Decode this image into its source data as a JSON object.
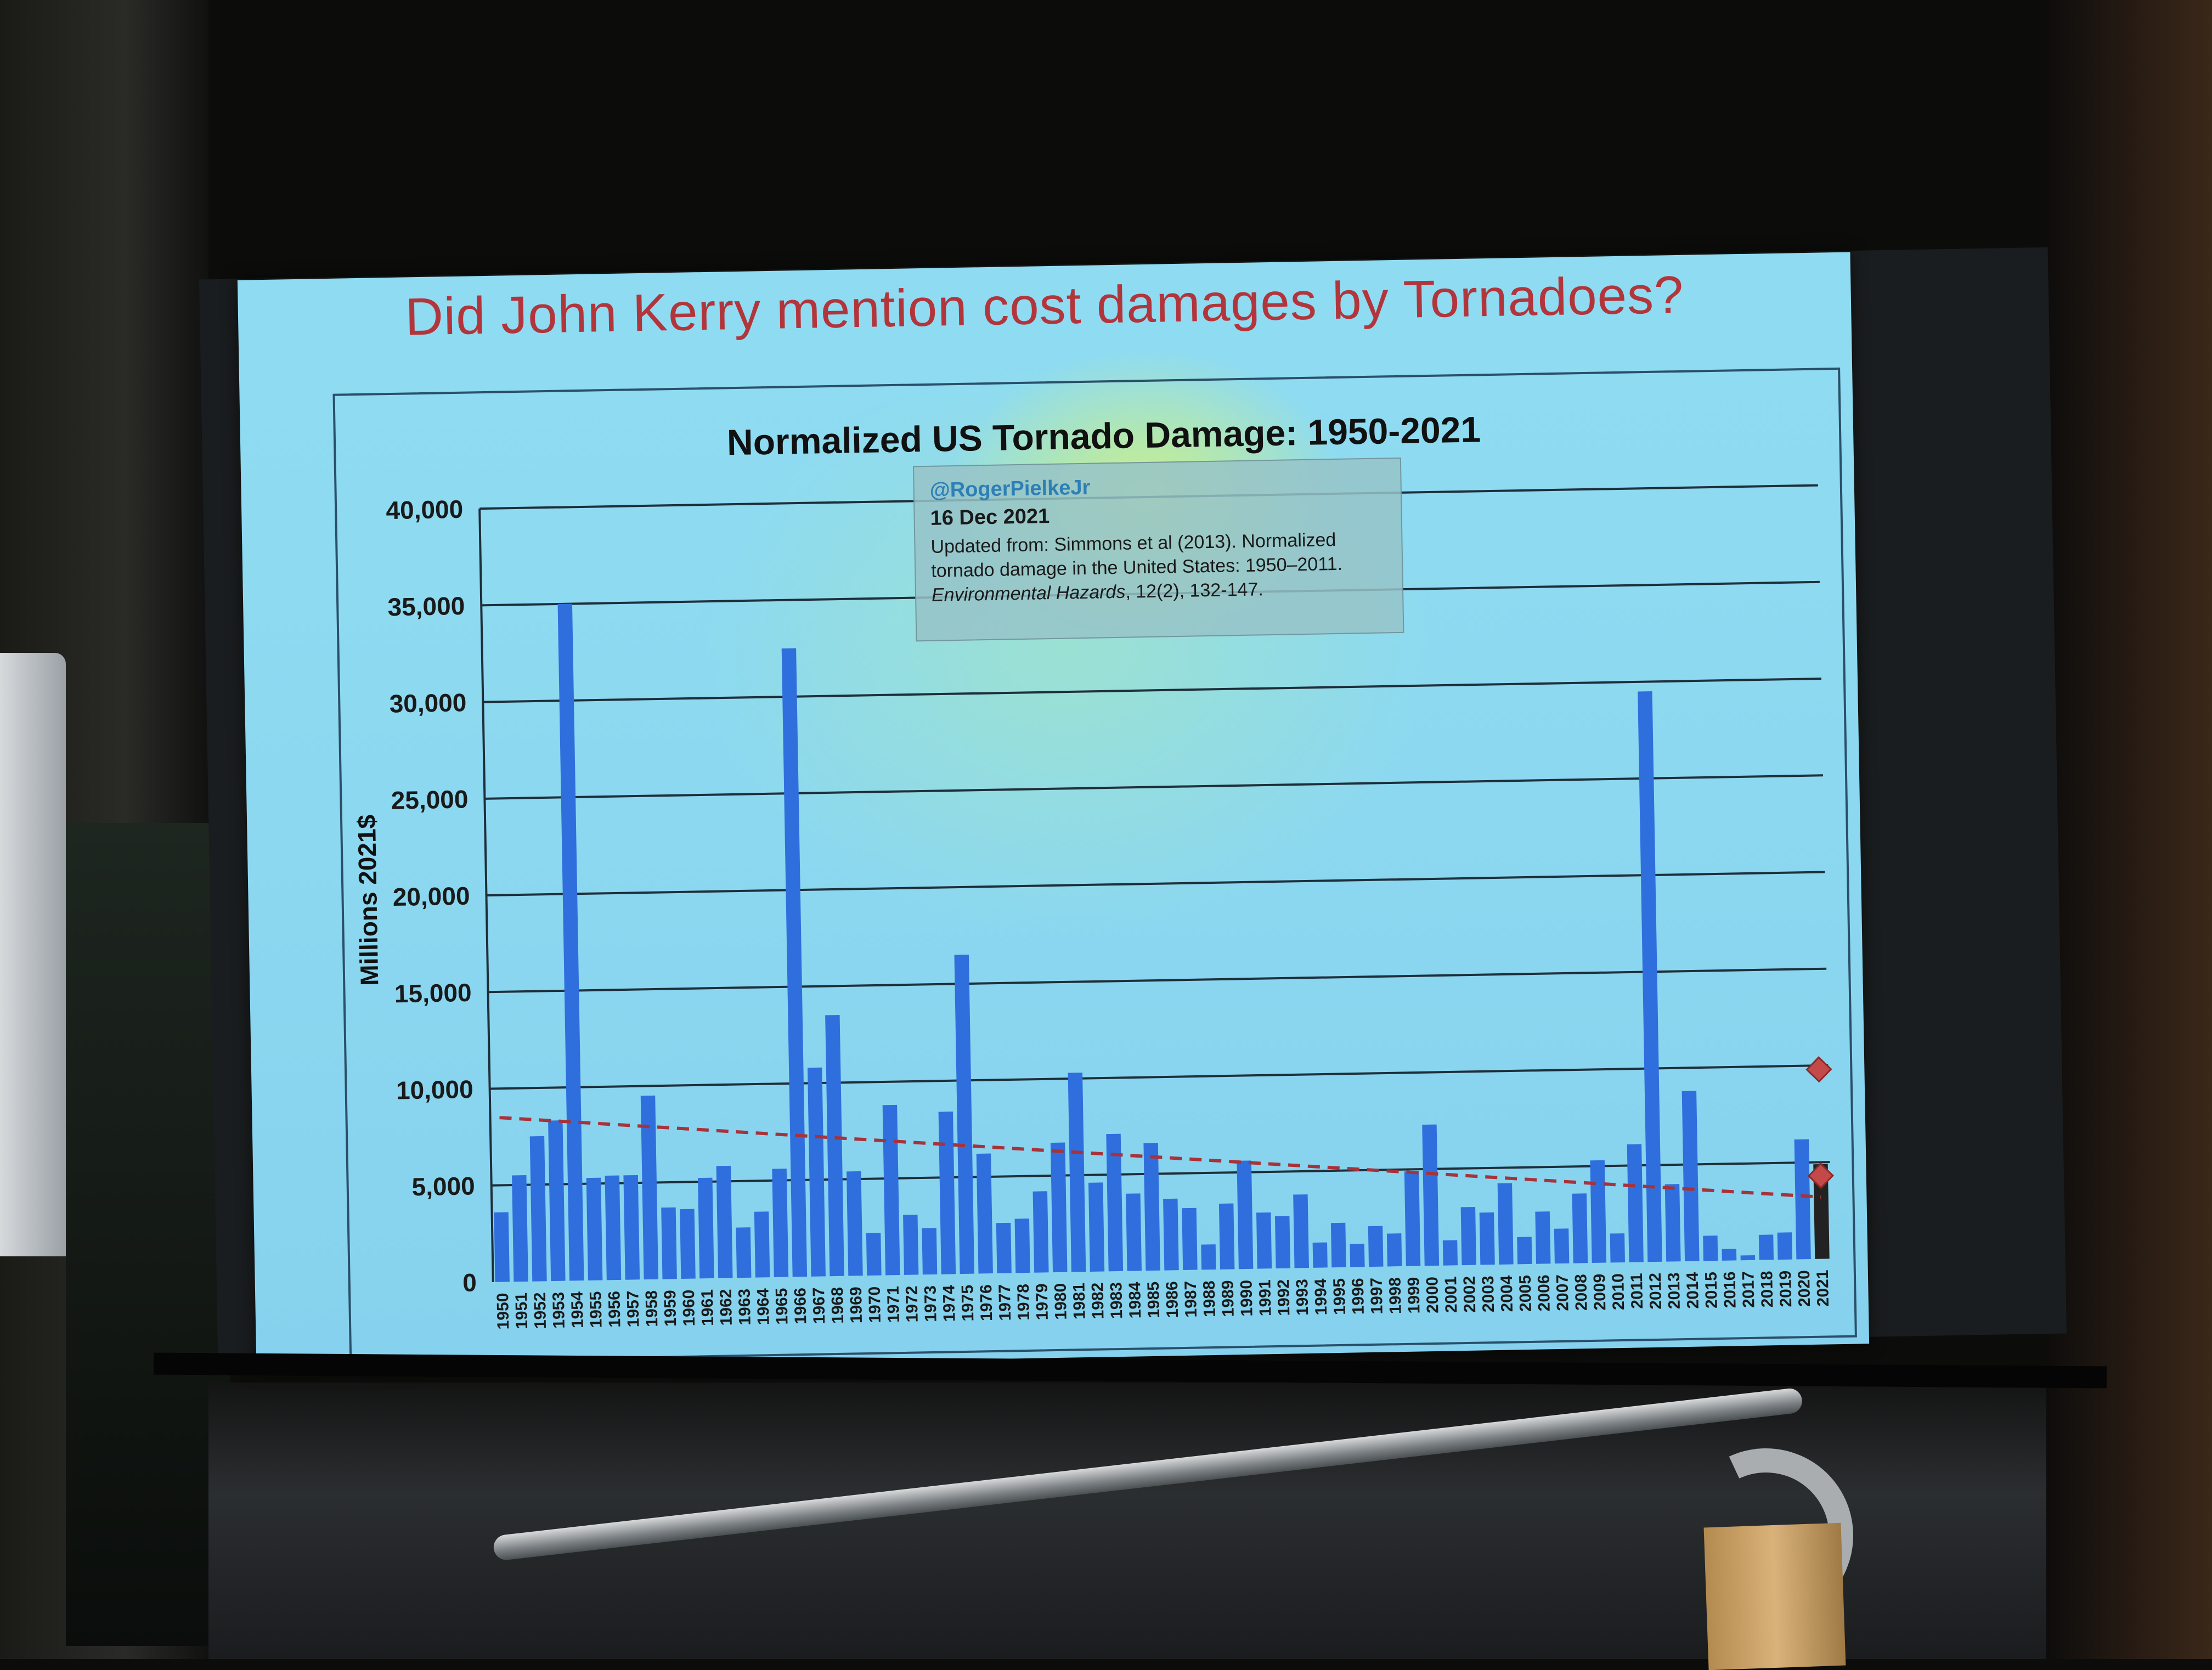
{
  "slide": {
    "title": "Did John Kerry mention cost damages by Tornadoes?"
  },
  "note": {
    "handle": "@RogerPielkeJr",
    "date": "16 Dec 2021",
    "text_1": "Updated from: Simmons et al (2013). Normalized tornado damage in the United States: 1950–2011. ",
    "journal": "Environmental Hazards",
    "text_2": ", 12(2), 132-147."
  },
  "colors": {
    "bar": "#2f6fdd",
    "bar_2021": "#222222",
    "trend": "#a8323a",
    "title": "#b2353c",
    "marker": "#c44a4a"
  },
  "chart_data": {
    "type": "bar",
    "title": "Normalized US Tornado Damage: 1950-2021",
    "xlabel": "",
    "ylabel": "Millions 2021$",
    "ylim": [
      0,
      40000
    ],
    "yticks": [
      "0",
      "5,000",
      "10,000",
      "15,000",
      "20,000",
      "25,000",
      "30,000",
      "35,000",
      "40,000"
    ],
    "grid": true,
    "legend": "none",
    "trendline": {
      "style": "dashed",
      "start_value": 8500,
      "end_value": 3200
    },
    "markers_2021": [
      9800,
      4300
    ],
    "categories": [
      "1950",
      "1951",
      "1952",
      "1953",
      "1954",
      "1955",
      "1956",
      "1957",
      "1958",
      "1959",
      "1960",
      "1961",
      "1962",
      "1963",
      "1964",
      "1965",
      "1966",
      "1967",
      "1968",
      "1969",
      "1970",
      "1971",
      "1972",
      "1973",
      "1974",
      "1975",
      "1976",
      "1977",
      "1978",
      "1979",
      "1980",
      "1981",
      "1982",
      "1983",
      "1984",
      "1985",
      "1986",
      "1987",
      "1988",
      "1989",
      "1990",
      "1991",
      "1992",
      "1993",
      "1994",
      "1995",
      "1996",
      "1997",
      "1998",
      "1999",
      "2000",
      "2001",
      "2002",
      "2003",
      "2004",
      "2005",
      "2006",
      "2007",
      "2008",
      "2009",
      "2010",
      "2011",
      "2012",
      "2013",
      "2014",
      "2015",
      "2016",
      "2017",
      "2018",
      "2019",
      "2020",
      "2021"
    ],
    "values": [
      3600,
      5500,
      7500,
      8300,
      35000,
      5300,
      5400,
      5400,
      9500,
      3700,
      3600,
      5200,
      5800,
      2600,
      3400,
      5600,
      32500,
      10800,
      13500,
      5400,
      2200,
      8800,
      3100,
      2400,
      8400,
      16500,
      6200,
      2600,
      2800,
      4200,
      6700,
      10300,
      4600,
      7100,
      4000,
      6600,
      3700,
      3200,
      1300,
      3400,
      5600,
      2900,
      2700,
      3800,
      1300,
      2300,
      1200,
      2100,
      1700,
      4900,
      7300,
      1300,
      3000,
      2700,
      4200,
      1400,
      2700,
      1800,
      3600,
      5300,
      1500,
      6100,
      29500,
      4000,
      8800,
      1300,
      600,
      250,
      1300,
      1400,
      6200,
      4900
    ]
  }
}
